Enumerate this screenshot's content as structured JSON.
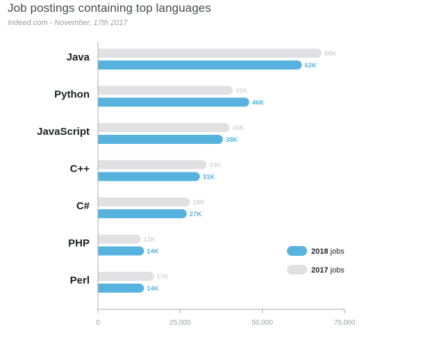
{
  "header": {
    "title": "Job postings containing top languages",
    "subtitle": "Indeed.com - November, 17th 2017"
  },
  "colors": {
    "series_2018": "#57b3de",
    "series_2017": "#e1e1e3",
    "label_2018": "#57b3de",
    "label_2017": "#d4d6d9",
    "axis": "#a8abb0"
  },
  "chart_data": {
    "type": "bar",
    "orientation": "horizontal",
    "title": "Job postings containing top languages",
    "subtitle": "Indeed.com - November, 17th 2017",
    "categories": [
      "Java",
      "Python",
      "JavaScript",
      "C++",
      "C#",
      "PHP",
      "Perl"
    ],
    "series": [
      {
        "name": "2017 jobs",
        "values": [
          68000,
          41000,
          40000,
          33000,
          28000,
          13000,
          17000
        ],
        "labels": [
          "68K",
          "41K",
          "40K",
          "33K",
          "28K",
          "13K",
          "17K"
        ]
      },
      {
        "name": "2018 jobs",
        "values": [
          62000,
          46000,
          38000,
          31000,
          27000,
          14000,
          14000
        ],
        "labels": [
          "62K",
          "46K",
          "38K",
          "31K",
          "27K",
          "14K",
          "14K"
        ]
      }
    ],
    "xlim": [
      0,
      75000
    ],
    "xticks": [
      0,
      25000,
      50000,
      75000
    ],
    "xtick_labels": [
      "0",
      "25,000",
      "50,000",
      "75,000"
    ],
    "grid": false,
    "legend": {
      "position": "bottom-right",
      "items": [
        {
          "year": "2018",
          "suffix": "jobs"
        },
        {
          "year": "2017",
          "suffix": "jobs"
        }
      ]
    }
  }
}
